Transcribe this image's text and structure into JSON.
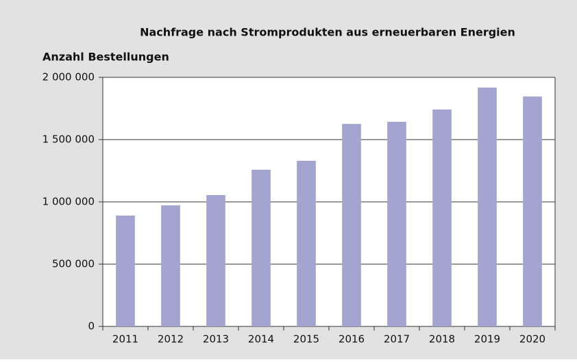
{
  "chart_data": {
    "type": "bar",
    "title": "Nachfrage nach Stromprodukten aus erneuerbaren Energien",
    "ylabel": "Anzahl Bestellungen",
    "categories": [
      "2011",
      "2012",
      "2013",
      "2014",
      "2015",
      "2016",
      "2017",
      "2018",
      "2019",
      "2020"
    ],
    "values": [
      890000,
      972000,
      1055000,
      1258000,
      1330000,
      1626000,
      1643000,
      1742000,
      1918000,
      1846000
    ],
    "color": "#a3a5d0",
    "ylim": [
      0,
      2000000
    ],
    "yticks": [
      0,
      {
        "value": 500000,
        "label": "500 000"
      },
      {
        "value": 1000000,
        "label": "1 000 000"
      },
      {
        "value": 1500000,
        "label": "1 500 000"
      },
      {
        "value": 2000000,
        "label": "2 000 000"
      }
    ],
    "grid": true
  }
}
